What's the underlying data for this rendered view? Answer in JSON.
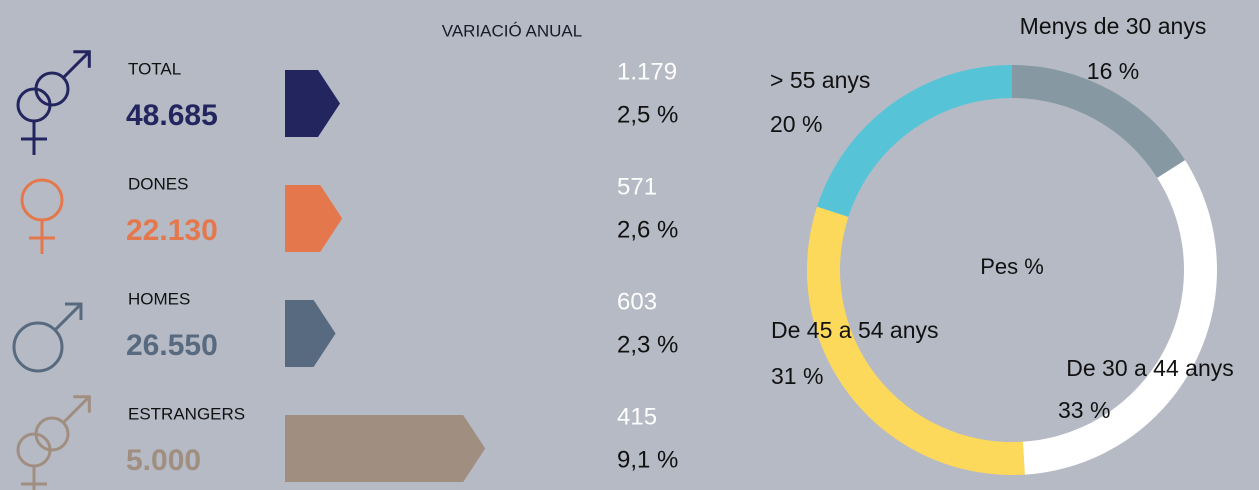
{
  "header": {
    "title": "VARIACIÓ ANUAL"
  },
  "rows": [
    {
      "label": "TOTAL",
      "number": "48.685",
      "change": "1.179",
      "pct": 2.5,
      "pct_label": "2,5 %",
      "color": "#23265e"
    },
    {
      "label": "DONES",
      "number": "22.130",
      "change": "571",
      "pct": 2.6,
      "pct_label": "2,6 %",
      "color": "#e4784c"
    },
    {
      "label": "HOMES",
      "number": "26.550",
      "change": "603",
      "pct": 2.3,
      "pct_label": "2,3 %",
      "color": "#586a80"
    },
    {
      "label": "ESTRANGERS",
      "number": "5.000",
      "change": "415",
      "pct": 9.1,
      "pct_label": "9,1 %",
      "color": "#a08e80"
    }
  ],
  "chart_data": {
    "type": "donut",
    "title": "Pes %",
    "categories": [
      "Menys de 30 anys",
      "De 30 a 44 anys",
      "De 45 a 54 anys",
      "> 55 anys"
    ],
    "values": [
      16,
      33,
      31,
      20
    ],
    "value_labels": [
      "16 %",
      "33 %",
      "31 %",
      "20 %"
    ],
    "colors": [
      "#8699a3",
      "#ffffff",
      "#fcd95b",
      "#56c4d6"
    ]
  }
}
